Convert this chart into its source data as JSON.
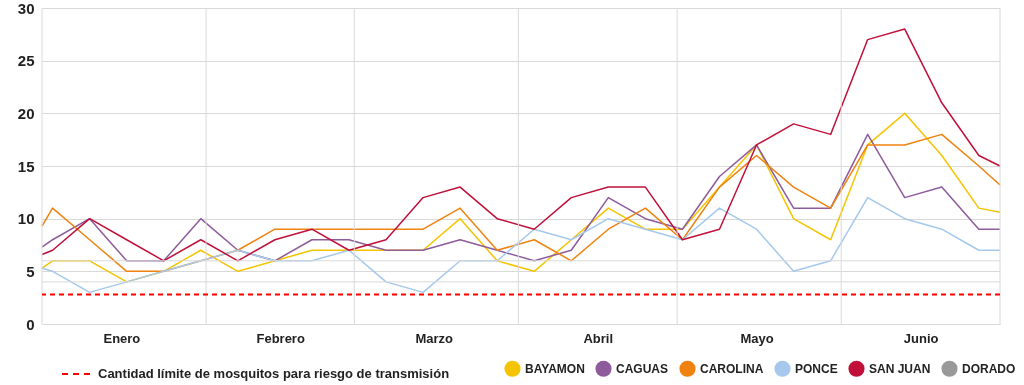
{
  "chart_data": {
    "type": "line",
    "x": [
      "--01-01",
      "--01-03",
      "--01-10",
      "--01-17",
      "--01-24",
      "--01-31",
      "--02-07",
      "--02-14",
      "--02-21",
      "--02-28",
      "--03-07",
      "--03-14",
      "--03-21",
      "--03-28",
      "--04-04",
      "--04-11",
      "--04-18",
      "--04-25",
      "--05-02",
      "--05-09",
      "--05-16",
      "--05-23",
      "--05-30",
      "--06-06",
      "--06-13",
      "--06-20",
      "--06-27",
      "--07-01"
    ],
    "series": [
      {
        "name": "BAYAMON",
        "color": "#f5c400",
        "values": [
          5.3,
          6,
          6,
          4,
          5,
          7,
          5,
          6,
          7,
          7,
          7,
          7,
          10,
          6,
          5,
          8,
          11,
          9,
          9,
          13,
          17,
          10,
          8,
          17,
          20,
          16,
          11,
          10.6
        ]
      },
      {
        "name": "CAGUAS",
        "color": "#8e5b9b",
        "values": [
          7.3,
          8,
          10,
          6,
          6,
          10,
          7,
          6,
          8,
          8,
          7,
          7,
          8,
          7,
          6,
          7,
          12,
          10,
          9,
          14,
          17,
          11,
          11,
          18,
          12,
          13,
          9,
          9
        ]
      },
      {
        "name": "CAROLINA",
        "color": "#f0820f",
        "values": [
          9.3,
          11,
          8,
          5,
          5,
          null,
          7,
          9,
          9,
          9,
          9,
          9,
          11,
          7,
          8,
          6,
          9,
          11,
          8,
          13,
          16,
          13,
          11,
          17,
          17,
          18,
          15,
          13.2
        ]
      },
      {
        "name": "PONCE",
        "color": "#a5c8ec",
        "values": [
          5.3,
          5,
          3,
          4,
          5,
          6,
          7,
          6,
          6,
          7,
          4,
          3,
          6,
          6,
          9,
          8,
          10,
          9,
          8,
          11,
          9,
          5,
          6,
          12,
          10,
          9,
          7,
          7
        ]
      },
      {
        "name": "SAN JUAN",
        "color": "#c0103a",
        "values": [
          6.6,
          7,
          10,
          8,
          6,
          8,
          6,
          8,
          9,
          7,
          8,
          12,
          13,
          10,
          9,
          12,
          13,
          13,
          8,
          9,
          17,
          19,
          18,
          27,
          28,
          21,
          16,
          15
        ]
      },
      {
        "name": "DORADO",
        "color": "#999999",
        "values": [
          null,
          null,
          null,
          null,
          null,
          null,
          null,
          null,
          null,
          null,
          null,
          null,
          null,
          null,
          null,
          null,
          null,
          null,
          null,
          null,
          null,
          null,
          null,
          null,
          null,
          null,
          null,
          null
        ]
      }
    ],
    "xlim": [
      "--01-01",
      "--07-01"
    ],
    "xticks": [
      {
        "value": "--01-01",
        "label": null
      },
      {
        "value": "--01-16",
        "label": "Enero"
      },
      {
        "value": "--02-01",
        "label": null
      },
      {
        "value": "--02-15",
        "label": "Febrero"
      },
      {
        "value": "--03-01",
        "label": null
      },
      {
        "value": "--03-16",
        "label": "Marzo"
      },
      {
        "value": "--04-01",
        "label": null
      },
      {
        "value": "--04-16",
        "label": "Abril"
      },
      {
        "value": "--05-01",
        "label": null
      },
      {
        "value": "--05-16",
        "label": "Mayo"
      },
      {
        "value": "--06-01",
        "label": null
      },
      {
        "value": "--06-16",
        "label": "Junio"
      },
      {
        "value": "--07-01",
        "label": null
      }
    ],
    "ylim": [
      0,
      30
    ],
    "yticks": [
      0,
      5,
      10,
      15,
      20,
      25,
      30
    ],
    "grid": true,
    "legend": "bottom",
    "marker": "none",
    "line_style": "solid",
    "ref_lines": [
      {
        "axis": "y",
        "value": 4,
        "color": "#d9d9d9",
        "line_style": "solid"
      },
      {
        "axis": "y",
        "value": 6,
        "color": "#d9d9d9",
        "line_style": "solid"
      },
      {
        "axis": "y",
        "value": 2.8,
        "label": "Cantidad límite de mosquitos para riesgo de transmisión",
        "color": "#ff0000",
        "line_style": "dashed"
      }
    ]
  }
}
